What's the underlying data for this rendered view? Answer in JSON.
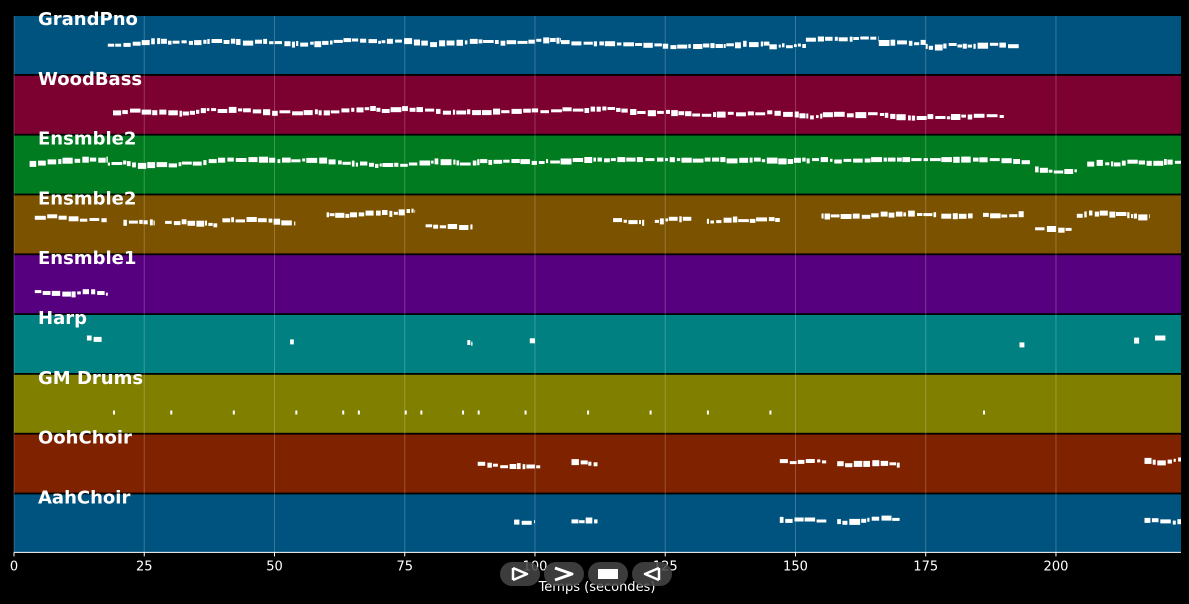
{
  "chart_data": {
    "type": "piano-roll",
    "xlabel": "Temps (secondes)",
    "xlim": [
      0,
      224
    ],
    "xticks": [
      0,
      25,
      50,
      75,
      100,
      125,
      150,
      175,
      200
    ],
    "grid": true,
    "tracks": [
      {
        "name": "GrandPno",
        "color": "#00537f",
        "segments": [
          [
            18,
            105,
            0.5
          ],
          [
            105,
            145,
            0.45
          ],
          [
            145,
            152,
            0.55
          ],
          [
            152,
            166,
            0.4
          ],
          [
            166,
            175,
            0.45
          ],
          [
            175,
            193,
            0.5
          ]
        ]
      },
      {
        "name": "WoodBass",
        "color": "#7c0030",
        "segments": [
          [
            19,
            190,
            0.65
          ]
        ]
      },
      {
        "name": "Ensmble2",
        "color": "#007b20",
        "segments": [
          [
            3,
            18,
            0.5
          ],
          [
            18,
            195,
            0.5
          ],
          [
            196,
            204,
            0.6
          ],
          [
            206,
            224,
            0.5
          ]
        ]
      },
      {
        "name": "Ensmble2",
        "color": "#7b5200",
        "segments": [
          [
            4,
            18,
            0.4
          ],
          [
            21,
            27,
            0.45
          ],
          [
            29,
            39,
            0.45
          ],
          [
            40,
            54,
            0.45
          ],
          [
            60,
            77,
            0.35
          ],
          [
            79,
            88,
            0.5
          ],
          [
            115,
            121,
            0.45
          ],
          [
            123,
            130,
            0.45
          ],
          [
            133,
            147,
            0.45
          ],
          [
            155,
            177,
            0.35
          ],
          [
            178,
            184,
            0.35
          ],
          [
            186,
            194,
            0.35
          ],
          [
            196,
            203,
            0.55
          ],
          [
            204,
            218,
            0.35
          ]
        ]
      },
      {
        "name": "Ensmble1",
        "color": "#56007f",
        "segments": [
          [
            4,
            18,
            0.65
          ]
        ]
      },
      {
        "name": "Harp",
        "color": "#008080",
        "segments": [
          [
            14,
            17,
            0.4
          ],
          [
            53,
            54,
            0.45
          ],
          [
            87,
            88,
            0.45
          ],
          [
            99,
            100,
            0.45
          ],
          [
            193,
            194,
            0.5
          ],
          [
            215,
            216,
            0.45
          ],
          [
            219,
            221,
            0.4
          ]
        ]
      },
      {
        "name": "GM Drums",
        "color": "#807f00",
        "segments": [
          [
            19,
            19.3,
            0.65
          ],
          [
            30,
            30.3,
            0.65
          ],
          [
            42,
            42.3,
            0.65
          ],
          [
            54,
            54.3,
            0.65
          ],
          [
            63,
            63.3,
            0.65
          ],
          [
            66,
            66.3,
            0.65
          ],
          [
            75,
            75.3,
            0.65
          ],
          [
            78,
            78.3,
            0.65
          ],
          [
            86,
            86.3,
            0.65
          ],
          [
            89,
            89.3,
            0.65
          ],
          [
            98,
            98.3,
            0.65
          ],
          [
            110,
            110.3,
            0.65
          ],
          [
            122,
            122.3,
            0.65
          ],
          [
            133,
            133.3,
            0.65
          ],
          [
            145,
            145.3,
            0.65
          ],
          [
            186,
            186.3,
            0.65
          ]
        ]
      },
      {
        "name": "OohChoir",
        "color": "#7f2200",
        "segments": [
          [
            89,
            101,
            0.5
          ],
          [
            107,
            112,
            0.48
          ],
          [
            147,
            156,
            0.45
          ],
          [
            158,
            170,
            0.48
          ],
          [
            217,
            224,
            0.48
          ]
        ]
      },
      {
        "name": "AahChoir",
        "color": "#00537f",
        "segments": [
          [
            96,
            100,
            0.48
          ],
          [
            107,
            112,
            0.45
          ],
          [
            147,
            156,
            0.45
          ],
          [
            158,
            170,
            0.48
          ],
          [
            217,
            224,
            0.45
          ]
        ]
      }
    ]
  },
  "controls": [
    {
      "name": "play-from-start-button",
      "icon": "play-outline-icon"
    },
    {
      "name": "play-button",
      "icon": "play-chevron-icon"
    },
    {
      "name": "stop-button",
      "icon": "stop-icon"
    },
    {
      "name": "rewind-button",
      "icon": "rewind-icon"
    }
  ]
}
